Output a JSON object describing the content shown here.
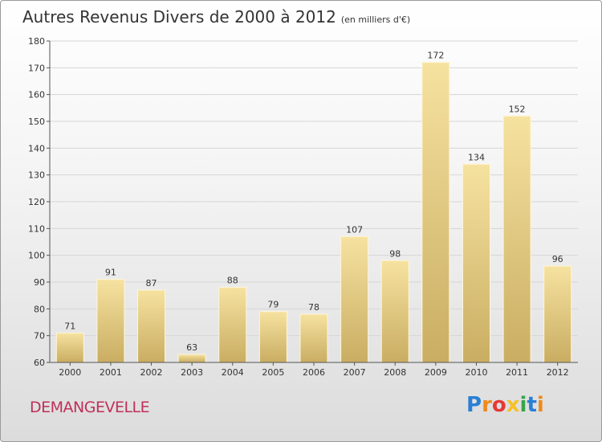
{
  "header": {
    "title": "Autres Revenus Divers de 2000 à 2012",
    "unit": "(en milliers d'€)"
  },
  "footer": {
    "commune": "DEMANGEVELLE"
  },
  "logo": {
    "letters": [
      "P",
      "r",
      "o",
      "x",
      "i",
      "t",
      "i"
    ],
    "colors": [
      "#2a7fd4",
      "#f08a1c",
      "#e53935",
      "#f6c026",
      "#3aa34a",
      "#2a7fd4",
      "#f08a1c"
    ]
  },
  "colors": {
    "bar": "#e9d38a",
    "bar_dark": "#c8ac5c",
    "bar_light": "#f6e5a6",
    "grid": "#d6d6d6",
    "axis": "#555555"
  },
  "chart_data": {
    "type": "bar",
    "title": "Autres Revenus Divers de 2000 à 2012",
    "categories": [
      "2000",
      "2001",
      "2002",
      "2003",
      "2004",
      "2005",
      "2006",
      "2007",
      "2008",
      "2009",
      "2010",
      "2011",
      "2012"
    ],
    "values": [
      71,
      91,
      87,
      63,
      88,
      79,
      78,
      107,
      98,
      172,
      134,
      152,
      96
    ],
    "ylim": [
      60,
      180
    ],
    "yticks": [
      60,
      70,
      80,
      90,
      100,
      110,
      120,
      130,
      140,
      150,
      160,
      170,
      180
    ],
    "xlabel": "",
    "ylabel": "",
    "grid": true
  }
}
